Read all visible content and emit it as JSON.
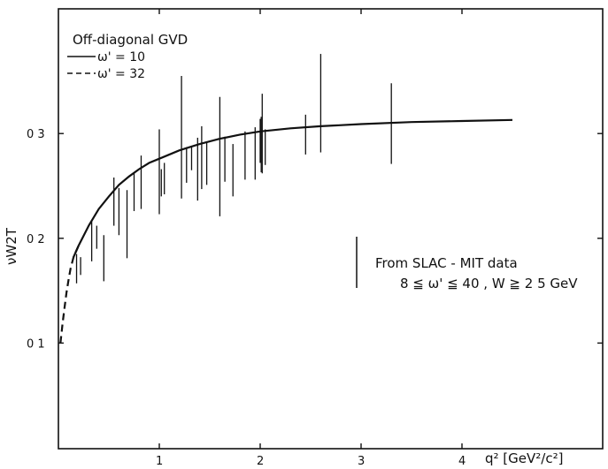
{
  "chart_data": {
    "type": "line",
    "title": "",
    "xlabel": "q² [GeV²/c²]",
    "ylabel": "νW2T",
    "xlim": [
      0,
      4.5
    ],
    "ylim": [
      0,
      0.36
    ],
    "grid": false,
    "x_ticks": [
      "1",
      "2",
      "3",
      "4"
    ],
    "y_ticks": [
      "0 1",
      "0 2",
      "0 3"
    ],
    "legend": {
      "placement": "top-left",
      "title": "Off-diagonal GVD",
      "entries": [
        {
          "label": "ω' = 10",
          "style": "solid"
        },
        {
          "label": "ω' = 32",
          "style": "dashed"
        }
      ]
    },
    "annotation": {
      "line1": "From SLAC - MIT data",
      "line2": "8 ≦ ω' ≦ 40 ,  W ≧ 2 5 GeV"
    },
    "series": [
      {
        "name": "ω' = 10",
        "style": "solid",
        "x": [
          0.15,
          0.2,
          0.3,
          0.4,
          0.5,
          0.6,
          0.7,
          0.8,
          0.9,
          1.0,
          1.2,
          1.4,
          1.6,
          1.8,
          2.0,
          2.3,
          2.6,
          3.0,
          3.5,
          4.0,
          4.5
        ],
        "y": [
          0.182,
          0.193,
          0.212,
          0.228,
          0.24,
          0.251,
          0.259,
          0.266,
          0.272,
          0.276,
          0.284,
          0.29,
          0.295,
          0.299,
          0.302,
          0.305,
          0.307,
          0.309,
          0.311,
          0.312,
          0.313
        ]
      },
      {
        "name": "ω' = 32",
        "style": "dashed",
        "x": [
          0.02,
          0.04,
          0.06,
          0.08,
          0.1,
          0.12,
          0.15,
          0.2
        ],
        "y": [
          0.1,
          0.118,
          0.133,
          0.148,
          0.16,
          0.171,
          0.182,
          0.193
        ]
      }
    ],
    "data_errors": [
      {
        "x": 0.18,
        "low": 0.157,
        "high": 0.185
      },
      {
        "x": 0.22,
        "low": 0.165,
        "high": 0.182
      },
      {
        "x": 0.33,
        "low": 0.178,
        "high": 0.216
      },
      {
        "x": 0.38,
        "low": 0.19,
        "high": 0.212
      },
      {
        "x": 0.45,
        "low": 0.159,
        "high": 0.203
      },
      {
        "x": 0.55,
        "low": 0.212,
        "high": 0.258
      },
      {
        "x": 0.6,
        "low": 0.203,
        "high": 0.248
      },
      {
        "x": 0.68,
        "low": 0.181,
        "high": 0.246
      },
      {
        "x": 0.75,
        "low": 0.226,
        "high": 0.263
      },
      {
        "x": 0.82,
        "low": 0.228,
        "high": 0.279
      },
      {
        "x": 1.0,
        "low": 0.223,
        "high": 0.304
      },
      {
        "x": 1.02,
        "low": 0.24,
        "high": 0.266
      },
      {
        "x": 1.05,
        "low": 0.242,
        "high": 0.272
      },
      {
        "x": 1.22,
        "low": 0.238,
        "high": 0.355
      },
      {
        "x": 1.27,
        "low": 0.253,
        "high": 0.287
      },
      {
        "x": 1.32,
        "low": 0.265,
        "high": 0.288
      },
      {
        "x": 1.38,
        "low": 0.236,
        "high": 0.296
      },
      {
        "x": 1.42,
        "low": 0.247,
        "high": 0.307
      },
      {
        "x": 1.47,
        "low": 0.251,
        "high": 0.292
      },
      {
        "x": 1.6,
        "low": 0.221,
        "high": 0.335
      },
      {
        "x": 1.65,
        "low": 0.254,
        "high": 0.297
      },
      {
        "x": 1.73,
        "low": 0.24,
        "high": 0.29
      },
      {
        "x": 1.85,
        "low": 0.256,
        "high": 0.302
      },
      {
        "x": 1.95,
        "low": 0.256,
        "high": 0.306
      },
      {
        "x": 2.0,
        "low": 0.272,
        "high": 0.314
      },
      {
        "x": 2.01,
        "low": 0.263,
        "high": 0.316
      },
      {
        "x": 2.02,
        "low": 0.262,
        "high": 0.338
      },
      {
        "x": 2.05,
        "low": 0.27,
        "high": 0.304
      },
      {
        "x": 2.45,
        "low": 0.28,
        "high": 0.318
      },
      {
        "x": 2.6,
        "low": 0.282,
        "high": 0.376
      },
      {
        "x": 3.3,
        "low": 0.271,
        "high": 0.348
      }
    ]
  }
}
